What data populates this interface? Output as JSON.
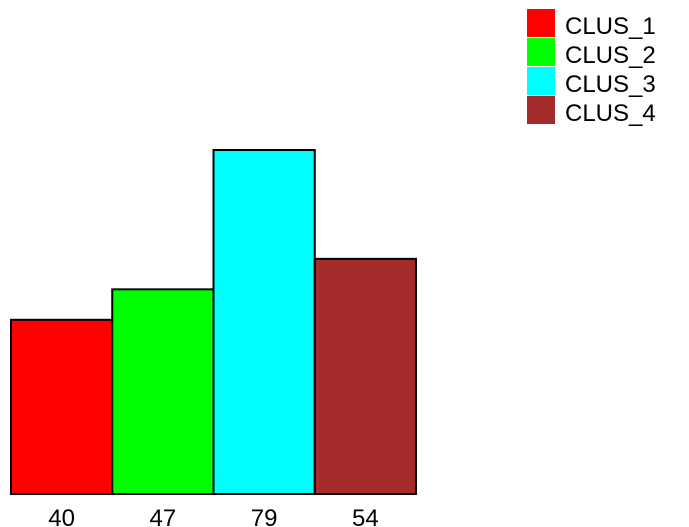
{
  "chart_data": {
    "type": "bar",
    "categories": [
      "CLUS_1",
      "CLUS_2",
      "CLUS_3",
      "CLUS_4"
    ],
    "values": [
      40,
      47,
      79,
      54
    ],
    "value_labels": [
      "40",
      "47",
      "79",
      "54"
    ],
    "colors": [
      "#ff0000",
      "#00ff00",
      "#00ffff",
      "#a52a2a"
    ],
    "title": "",
    "xlabel": "",
    "ylabel": "",
    "ylim": [
      0,
      80
    ],
    "grid": false,
    "legend_position": "top-right",
    "legend": [
      {
        "label": "CLUS_1",
        "color": "#ff0000"
      },
      {
        "label": "CLUS_2",
        "color": "#00ff00"
      },
      {
        "label": "CLUS_3",
        "color": "#00ffff"
      },
      {
        "label": "CLUS_4",
        "color": "#a52a2a"
      }
    ]
  }
}
